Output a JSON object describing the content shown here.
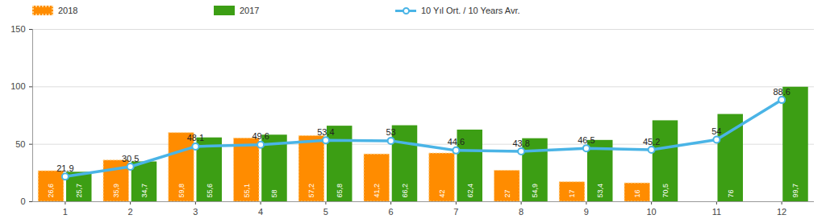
{
  "chart_data": {
    "type": "bar",
    "categories": [
      "1",
      "2",
      "3",
      "4",
      "5",
      "6",
      "7",
      "8",
      "9",
      "10",
      "11",
      "12"
    ],
    "series": [
      {
        "name": "2018",
        "type": "bar",
        "color": "#ff8c00",
        "values": [
          26.6,
          35.9,
          59.8,
          55.1,
          57.2,
          41.2,
          42,
          27,
          17,
          16,
          null,
          null
        ],
        "value_labels": [
          "26,6",
          "35,9",
          "59,8",
          "55,1",
          "57,2",
          "41,2",
          "42",
          "27",
          "17",
          "16",
          null,
          null
        ]
      },
      {
        "name": "2017",
        "type": "bar",
        "color": "#3c9e14",
        "values": [
          25.7,
          34.7,
          55.6,
          58,
          65.8,
          66.2,
          62.4,
          54.9,
          53.4,
          70.5,
          76,
          99.7
        ],
        "value_labels": [
          "25,7",
          "34,7",
          "55,6",
          "58",
          "65,8",
          "66,2",
          "62,4",
          "54,9",
          "53,4",
          "70,5",
          "76",
          "99,7"
        ]
      },
      {
        "name": "10 Yıl Ort. / 10 Years Avr.",
        "type": "line",
        "color": "#4ab4e6",
        "marker": "circle",
        "values": [
          21.9,
          30.5,
          48.1,
          49.6,
          53.4,
          53,
          44.6,
          43.8,
          46.5,
          45.2,
          54,
          88.6
        ]
      }
    ],
    "ylim": [
      0,
      150
    ],
    "yticks": [
      0,
      50,
      100,
      150
    ],
    "grid": true,
    "legend": "top",
    "data_labels": true
  }
}
